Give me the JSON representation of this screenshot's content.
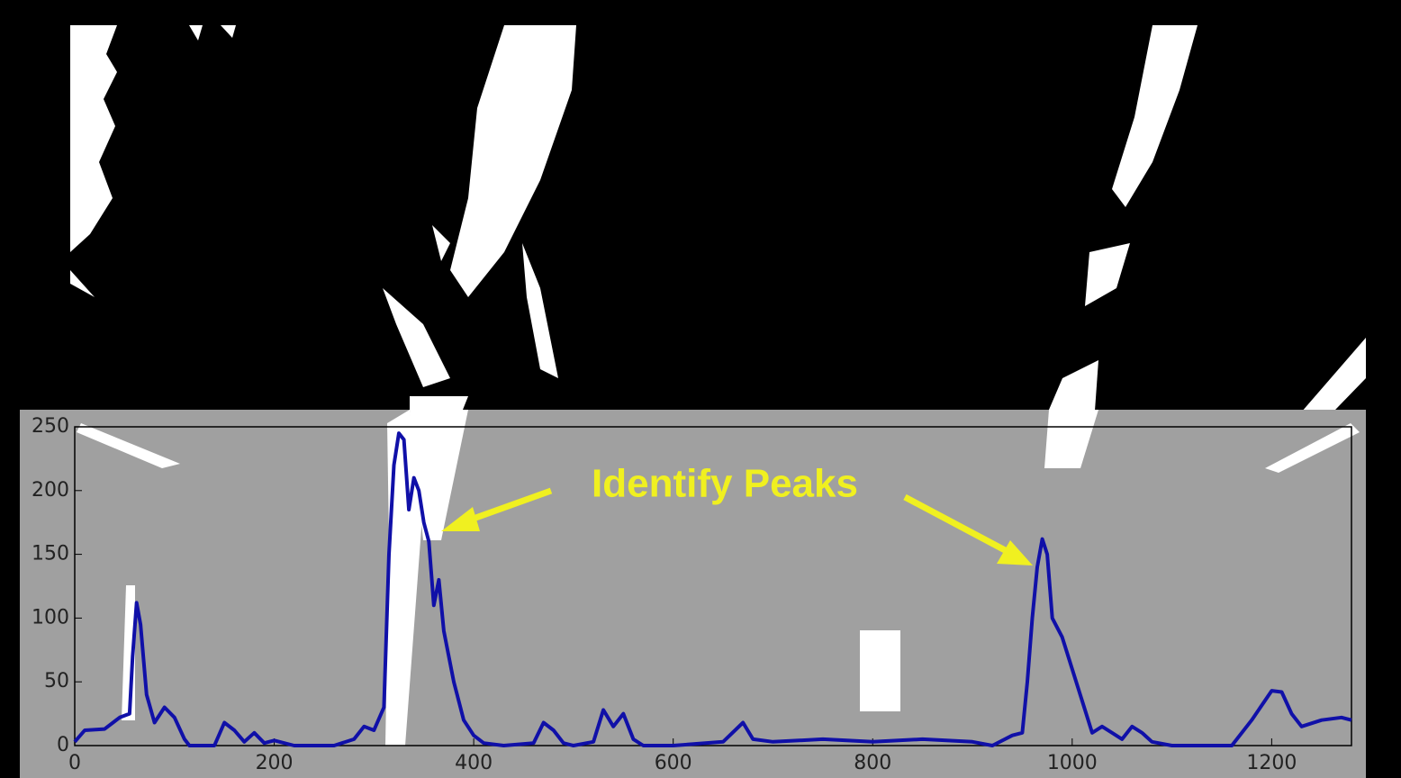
{
  "chart_data": {
    "type": "line",
    "annotation": "Identify Peaks",
    "x": [
      0,
      10,
      30,
      45,
      55,
      58,
      62,
      66,
      72,
      80,
      90,
      100,
      110,
      115,
      140,
      150,
      160,
      170,
      180,
      190,
      200,
      220,
      260,
      280,
      290,
      300,
      310,
      315,
      320,
      325,
      330,
      335,
      340,
      345,
      350,
      355,
      360,
      365,
      370,
      380,
      390,
      400,
      410,
      430,
      460,
      470,
      480,
      490,
      500,
      520,
      530,
      540,
      550,
      560,
      570,
      600,
      650,
      670,
      680,
      700,
      750,
      800,
      850,
      900,
      920,
      940,
      950,
      955,
      960,
      965,
      970,
      975,
      980,
      990,
      1000,
      1010,
      1020,
      1030,
      1040,
      1050,
      1060,
      1070,
      1080,
      1100,
      1160,
      1180,
      1200,
      1210,
      1220,
      1230,
      1250,
      1270,
      1280
    ],
    "values": [
      3,
      12,
      13,
      22,
      25,
      70,
      112,
      95,
      40,
      18,
      30,
      22,
      5,
      0,
      0,
      18,
      12,
      3,
      10,
      2,
      4,
      0,
      0,
      5,
      15,
      12,
      30,
      150,
      220,
      245,
      240,
      185,
      210,
      200,
      175,
      160,
      110,
      130,
      90,
      50,
      20,
      8,
      2,
      0,
      2,
      18,
      12,
      2,
      0,
      3,
      28,
      15,
      25,
      5,
      0,
      0,
      3,
      18,
      5,
      3,
      5,
      3,
      5,
      3,
      0,
      8,
      10,
      50,
      100,
      140,
      162,
      150,
      100,
      85,
      60,
      35,
      10,
      15,
      10,
      5,
      15,
      10,
      3,
      0,
      0,
      20,
      43,
      42,
      25,
      15,
      20,
      22,
      20
    ],
    "color": "#1010a8",
    "xlim": [
      0,
      1280
    ],
    "ylim": [
      0,
      250
    ],
    "xticks": [
      0,
      200,
      400,
      600,
      800,
      1000,
      1200
    ],
    "yticks": [
      0,
      50,
      100,
      150,
      200,
      250
    ],
    "grid": false
  }
}
